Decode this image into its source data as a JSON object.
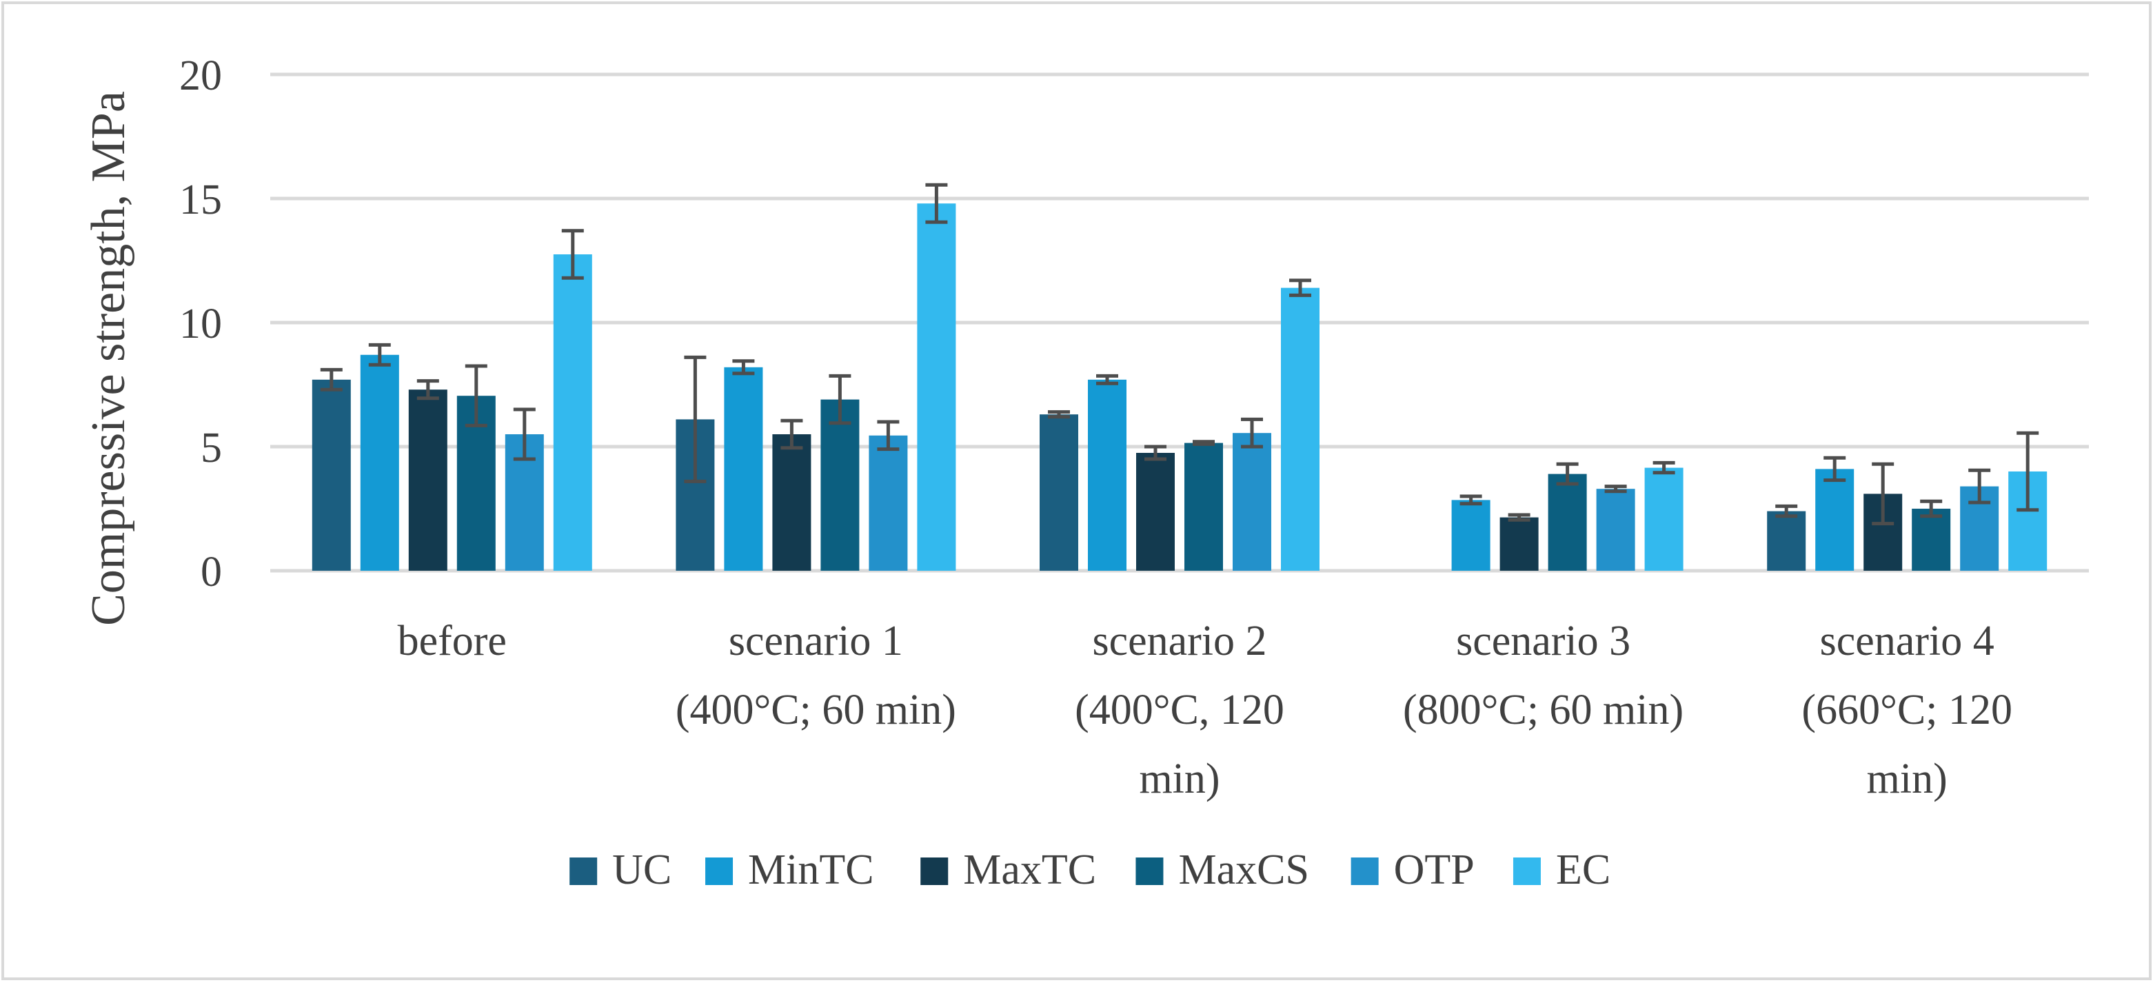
{
  "chart_data": {
    "type": "bar",
    "title": "",
    "xlabel": "",
    "ylabel": "Compressive strength, MPa",
    "ylim": [
      0,
      20
    ],
    "yticks": [
      0,
      5,
      10,
      15,
      20
    ],
    "grid": true,
    "legend_position": "bottom",
    "categories": [
      [
        "before"
      ],
      [
        "scenario 1",
        "(400°C; 60 min)"
      ],
      [
        "scenario 2",
        "(400°C, 120",
        "min)"
      ],
      [
        "scenario 3",
        "(800°C; 60 min)"
      ],
      [
        "scenario 4",
        "(660°C; 120",
        "min)"
      ]
    ],
    "series": [
      {
        "name": "UC",
        "color": "#1b5e80",
        "values": [
          7.7,
          6.1,
          6.3,
          null,
          2.4
        ],
        "errors": [
          0.4,
          2.5,
          0.1,
          null,
          0.2
        ]
      },
      {
        "name": "MinTC",
        "color": "#149ad4",
        "values": [
          8.7,
          8.2,
          7.7,
          2.85,
          4.1
        ],
        "errors": [
          0.4,
          0.25,
          0.15,
          0.15,
          0.45
        ]
      },
      {
        "name": "MaxTC",
        "color": "#133a4f",
        "values": [
          7.3,
          5.5,
          4.75,
          2.15,
          3.1
        ],
        "errors": [
          0.35,
          0.55,
          0.25,
          0.1,
          1.2
        ]
      },
      {
        "name": "MaxCS",
        "color": "#0c5f80",
        "values": [
          7.05,
          6.9,
          5.15,
          3.9,
          2.5
        ],
        "errors": [
          1.2,
          0.95,
          0.05,
          0.4,
          0.3
        ]
      },
      {
        "name": "OTP",
        "color": "#2391cb",
        "values": [
          5.5,
          5.45,
          5.55,
          3.3,
          3.4
        ],
        "errors": [
          1.0,
          0.55,
          0.55,
          0.1,
          0.65
        ]
      },
      {
        "name": "EC",
        "color": "#33b9ee",
        "values": [
          12.75,
          14.8,
          11.4,
          4.15,
          4.0
        ],
        "errors": [
          0.95,
          0.75,
          0.3,
          0.2,
          1.55
        ]
      }
    ]
  }
}
